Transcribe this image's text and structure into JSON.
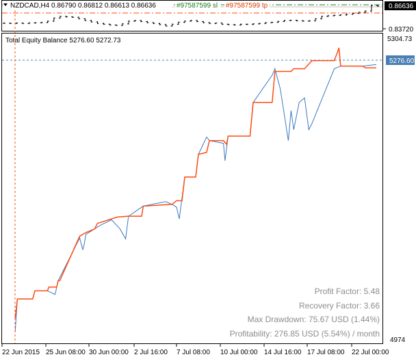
{
  "price_panel": {
    "symbol_info": "NZDCAD,H4  0.86790 0.86812 0.86613 0.86636",
    "order_labels": [
      "#97587599 sl",
      "#97587599 tp"
    ],
    "current_price": "0.86636",
    "axis_low": "0.83720",
    "closes": [
      0.8443,
      0.8441,
      0.8445,
      0.844,
      0.8446,
      0.8449,
      0.8452,
      0.847,
      0.851,
      0.8531,
      0.8525,
      0.852,
      0.85,
      0.8478,
      0.846,
      0.8441,
      0.843,
      0.842,
      0.8415,
      0.8435,
      0.847,
      0.8478,
      0.8465,
      0.845,
      0.844,
      0.8425,
      0.8407,
      0.843,
      0.8455,
      0.847,
      0.8478,
      0.8465,
      0.845,
      0.844,
      0.8445,
      0.843,
      0.8425,
      0.842,
      0.843,
      0.8428,
      0.8435,
      0.844,
      0.845,
      0.8455,
      0.8466,
      0.8478,
      0.848,
      0.8475,
      0.847,
      0.8474,
      0.85,
      0.8531,
      0.854,
      0.8545,
      0.855,
      0.856,
      0.857,
      0.8584,
      0.86,
      0.8672,
      0.8664
    ],
    "colors": {
      "sl": "#1e7b1e",
      "tp": "#ff4a10",
      "price_line": "#c0c0c0",
      "bars": "#000000"
    }
  },
  "indicator": {
    "title": "Total Equity Balance 5276.60 5272.73",
    "axis_top": "5304.73",
    "axis_bottom": "4974",
    "current_label": "5276.60"
  },
  "stats": {
    "profit_factor": "Profit Factor: 5.48",
    "recovery_factor": "Recovery Factor: 3.66",
    "max_drawdown": "Max Drawdown: 75.67 USD (1.44%)",
    "profitability": "Profitability: 276.85 USD (5.54%) / month"
  },
  "chart_data": {
    "type": "line",
    "title": "Total Equity Balance",
    "ylim": [
      4974,
      5304.73
    ],
    "x_ticks": [
      "22 Jun 2015",
      "25 Jun 08:00",
      "30 Jun 00:00",
      "2 Jul 16:00",
      "7 Jul 08:00",
      "10 Jul 00:00",
      "14 Jul 16:00",
      "17 Jul 08:00",
      "22 Jul 00:00"
    ],
    "x_tick_times": [
      "2015-06-22T00:00",
      "2015-06-25T08:00",
      "2015-06-30T00:00",
      "2015-07-02T16:00",
      "2015-07-07T08:00",
      "2015-07-10T00:00",
      "2015-07-14T16:00",
      "2015-07-17T08:00",
      "2015-07-22T00:00"
    ],
    "current_equity": 5276.6,
    "current_balance": 5272.73,
    "series": [
      {
        "key": "balance",
        "color": "#ff4a10",
        "points": [
          [
            "2015-06-23T00:00",
            4998
          ],
          [
            "2015-06-23T04:00",
            5019
          ],
          [
            "2015-06-24T08:00",
            5019
          ],
          [
            "2015-06-24T12:00",
            5028
          ],
          [
            "2015-06-25T12:00",
            5028
          ],
          [
            "2015-06-25T16:00",
            5032
          ],
          [
            "2015-06-26T12:00",
            5032
          ],
          [
            "2015-06-26T16:00",
            5039
          ],
          [
            "2015-06-26T20:00",
            5039
          ],
          [
            "2015-06-29T00:00",
            5088
          ],
          [
            "2015-06-29T16:00",
            5092
          ],
          [
            "2015-06-30T08:00",
            5096
          ],
          [
            "2015-06-30T12:00",
            5102
          ],
          [
            "2015-07-01T16:00",
            5109
          ],
          [
            "2015-07-02T08:00",
            5110
          ],
          [
            "2015-07-03T12:00",
            5110
          ],
          [
            "2015-07-03T16:00",
            5121
          ],
          [
            "2015-07-06T20:00",
            5123
          ],
          [
            "2015-07-07T08:00",
            5127
          ],
          [
            "2015-07-07T16:00",
            5127
          ],
          [
            "2015-07-07T20:00",
            5153
          ],
          [
            "2015-07-08T12:00",
            5153
          ],
          [
            "2015-07-08T16:00",
            5178
          ],
          [
            "2015-07-09T04:00",
            5180
          ],
          [
            "2015-07-09T08:00",
            5193
          ],
          [
            "2015-07-10T08:00",
            5193
          ],
          [
            "2015-07-10T16:00",
            5189
          ],
          [
            "2015-07-10T20:00",
            5198
          ],
          [
            "2015-07-13T04:00",
            5198
          ],
          [
            "2015-07-13T12:00",
            5235
          ],
          [
            "2015-07-15T04:00",
            5235
          ],
          [
            "2015-07-15T08:00",
            5269
          ],
          [
            "2015-07-16T08:00",
            5269
          ],
          [
            "2015-07-16T12:00",
            5272
          ],
          [
            "2015-07-17T04:00",
            5272
          ],
          [
            "2015-07-17T20:00",
            5281
          ],
          [
            "2015-07-20T04:00",
            5281
          ],
          [
            "2015-07-20T12:00",
            5290
          ],
          [
            "2015-07-20T16:00",
            5295
          ],
          [
            "2015-07-20T20:00",
            5275
          ],
          [
            "2015-07-22T16:00",
            5275
          ],
          [
            "2015-07-22T20:00",
            5273
          ],
          [
            "2015-07-23T12:00",
            5273
          ]
        ]
      },
      {
        "key": "equity",
        "color": "#3a78c0",
        "points": [
          [
            "2015-06-23T00:00",
            4983
          ],
          [
            "2015-06-23T04:00",
            5019
          ],
          [
            "2015-06-24T08:00",
            5019
          ],
          [
            "2015-06-24T12:00",
            5028
          ],
          [
            "2015-06-25T12:00",
            5028
          ],
          [
            "2015-06-26T08:00",
            5024
          ],
          [
            "2015-06-26T16:00",
            5039
          ],
          [
            "2015-06-29T00:00",
            5086
          ],
          [
            "2015-06-29T08:00",
            5073
          ],
          [
            "2015-06-29T12:00",
            5080
          ],
          [
            "2015-06-29T16:00",
            5090
          ],
          [
            "2015-06-30T08:00",
            5096
          ],
          [
            "2015-06-30T16:00",
            5100
          ],
          [
            "2015-07-01T08:00",
            5106
          ],
          [
            "2015-07-01T20:00",
            5096
          ],
          [
            "2015-07-02T04:00",
            5085
          ],
          [
            "2015-07-02T08:00",
            5110
          ],
          [
            "2015-07-03T16:00",
            5121
          ],
          [
            "2015-07-06T04:00",
            5126
          ],
          [
            "2015-07-06T20:00",
            5123
          ],
          [
            "2015-07-07T08:00",
            5120
          ],
          [
            "2015-07-07T12:00",
            5107
          ],
          [
            "2015-07-07T20:00",
            5153
          ],
          [
            "2015-07-08T12:00",
            5153
          ],
          [
            "2015-07-08T16:00",
            5178
          ],
          [
            "2015-07-09T04:00",
            5197
          ],
          [
            "2015-07-09T08:00",
            5193
          ],
          [
            "2015-07-10T08:00",
            5190
          ],
          [
            "2015-07-10T12:00",
            5171
          ],
          [
            "2015-07-10T20:00",
            5198
          ],
          [
            "2015-07-13T04:00",
            5198
          ],
          [
            "2015-07-13T12:00",
            5235
          ],
          [
            "2015-07-15T04:00",
            5265
          ],
          [
            "2015-07-15T08:00",
            5272
          ],
          [
            "2015-07-15T16:00",
            5250
          ],
          [
            "2015-07-16T04:00",
            5193
          ],
          [
            "2015-07-16T08:00",
            5226
          ],
          [
            "2015-07-16T12:00",
            5205
          ],
          [
            "2015-07-16T20:00",
            5235
          ],
          [
            "2015-07-17T04:00",
            5240
          ],
          [
            "2015-07-17T12:00",
            5205
          ],
          [
            "2015-07-17T20:00",
            5212
          ],
          [
            "2015-07-20T04:00",
            5272
          ],
          [
            "2015-07-20T20:00",
            5275
          ],
          [
            "2015-07-22T16:00",
            5275
          ],
          [
            "2015-07-23T12:00",
            5276.6
          ]
        ]
      }
    ],
    "grid": false
  }
}
